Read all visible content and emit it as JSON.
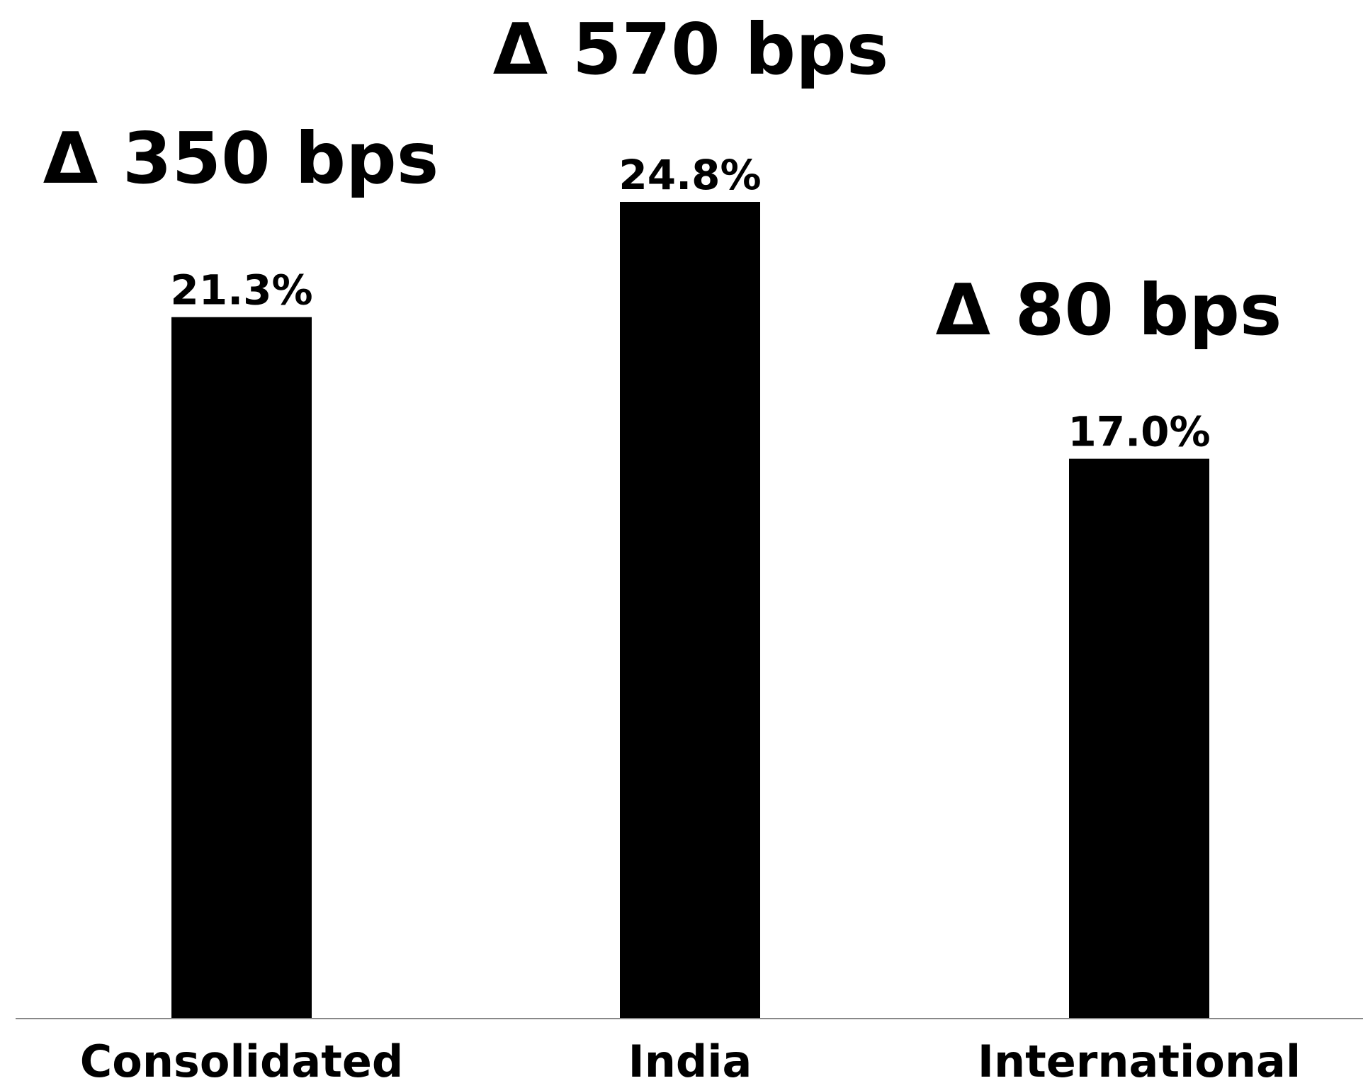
{
  "chart_data": {
    "type": "bar",
    "categories": [
      "Consolidated",
      "India",
      "International"
    ],
    "values": [
      21.3,
      24.8,
      17.0
    ],
    "value_labels": [
      "21.3%",
      "24.8%",
      "17.0%"
    ],
    "annotations": [
      "Δ 350 bps",
      "Δ 570 bps",
      "Δ 80 bps"
    ],
    "ylim": [
      0,
      24.8
    ],
    "grid": false,
    "legend": "none",
    "title": "",
    "xlabel": "",
    "ylabel": "",
    "colors": {
      "bar": "#000000",
      "axis": "#888888",
      "text": "#000000",
      "background": "#ffffff"
    }
  }
}
